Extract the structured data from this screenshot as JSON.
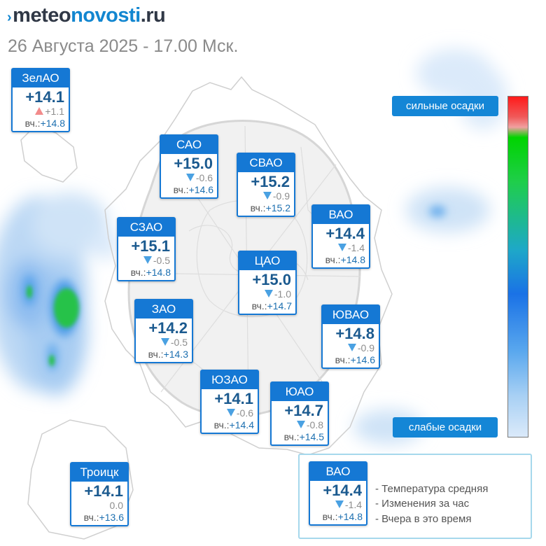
{
  "header": {
    "logo_prefix": "meteo",
    "logo_accent": "novosti",
    "logo_suffix": ".ru",
    "date_line": "26 Августа 2025 - 17.00 Мск."
  },
  "legend": {
    "strong_label": "сильные осадки",
    "weak_label": "слабые осадки",
    "scale_colors": [
      "#ff1a1a",
      "#00d400",
      "#1a72e6",
      "#dbeafa"
    ]
  },
  "yesterday_label": "вч.:",
  "districts": [
    {
      "name": "ЗелАО",
      "temp": "+14.1",
      "delta": "+1.1",
      "trend": "up",
      "yesterday": "+14.8"
    },
    {
      "name": "САО",
      "temp": "+15.0",
      "delta": "-0.6",
      "trend": "down",
      "yesterday": "+14.6"
    },
    {
      "name": "СВАО",
      "temp": "+15.2",
      "delta": "-0.9",
      "trend": "down",
      "yesterday": "+15.2"
    },
    {
      "name": "ВАО",
      "temp": "+14.4",
      "delta": "-1.4",
      "trend": "down",
      "yesterday": "+14.8"
    },
    {
      "name": "СЗАО",
      "temp": "+15.1",
      "delta": "-0.5",
      "trend": "down",
      "yesterday": "+14.8"
    },
    {
      "name": "ЦАО",
      "temp": "+15.0",
      "delta": "-1.0",
      "trend": "down",
      "yesterday": "+14.7"
    },
    {
      "name": "ЗАО",
      "temp": "+14.2",
      "delta": "-0.5",
      "trend": "down",
      "yesterday": "+14.3"
    },
    {
      "name": "ЮВАО",
      "temp": "+14.8",
      "delta": "-0.9",
      "trend": "down",
      "yesterday": "+14.6"
    },
    {
      "name": "ЮЗАО",
      "temp": "+14.1",
      "delta": "-0.6",
      "trend": "down",
      "yesterday": "+14.4"
    },
    {
      "name": "ЮАО",
      "temp": "+14.7",
      "delta": "-0.8",
      "trend": "down",
      "yesterday": "+14.5"
    },
    {
      "name": "Троицк",
      "temp": "+14.1",
      "delta": "0.0",
      "trend": "none",
      "yesterday": "+13.6"
    }
  ],
  "key": {
    "sample": {
      "name": "ВАО",
      "temp": "+14.4",
      "delta": "-1.4",
      "trend": "down",
      "yesterday": "+14.8"
    },
    "items": [
      "- Температура средняя",
      "- Изменения за час",
      "- Вчера в это время"
    ]
  }
}
